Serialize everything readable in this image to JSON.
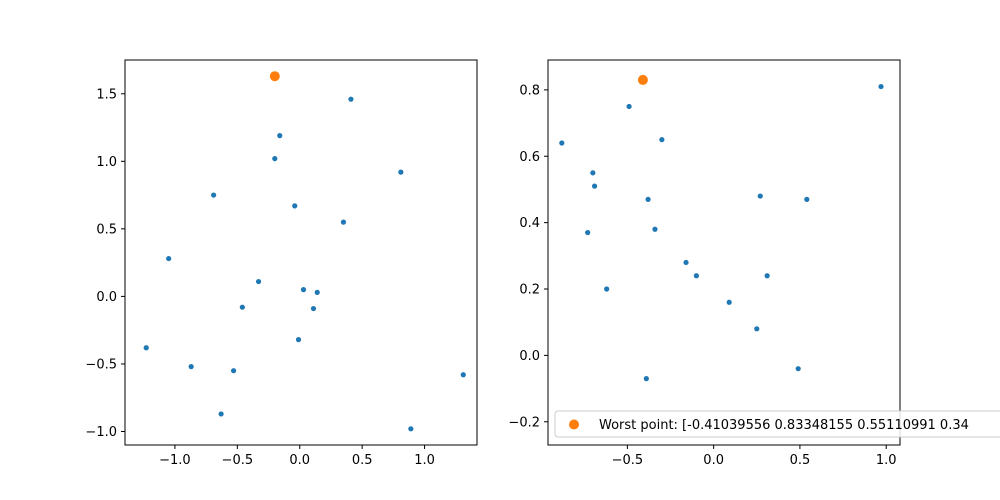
{
  "chart_data": [
    {
      "type": "scatter",
      "xlim": [
        -1.4,
        1.42
      ],
      "ylim": [
        -1.1,
        1.75
      ],
      "xticks": [
        -1.0,
        -0.5,
        0.0,
        0.5,
        1.0
      ],
      "xtick_labels": [
        "−1.0",
        "−0.5",
        "0.0",
        "0.5",
        "1.0"
      ],
      "yticks": [
        -1.0,
        -0.5,
        0.0,
        0.5,
        1.0,
        1.5
      ],
      "ytick_labels": [
        "−1.0",
        "−0.5",
        "0.0",
        "0.5",
        "1.0",
        "1.5"
      ],
      "grid": false,
      "series": [
        {
          "color": "#1f77b4",
          "marker": "small-dot",
          "x": [
            0.41,
            -0.16,
            -0.2,
            -0.69,
            -0.04,
            0.81,
            0.35,
            -1.05,
            -0.33,
            0.03,
            0.14,
            -0.46,
            0.11,
            -0.01,
            -1.23,
            -0.87,
            -0.53,
            1.31,
            -0.63,
            0.89
          ],
          "y": [
            1.46,
            1.19,
            1.02,
            0.75,
            0.67,
            0.92,
            0.55,
            0.28,
            0.11,
            0.05,
            0.03,
            -0.08,
            -0.09,
            -0.32,
            -0.38,
            -0.52,
            -0.55,
            -0.58,
            -0.87,
            -0.98
          ]
        },
        {
          "color": "#ff7f0e",
          "marker": "large-dot",
          "x": [
            -0.2
          ],
          "y": [
            1.63
          ]
        }
      ]
    },
    {
      "type": "scatter",
      "xlim": [
        -0.96,
        1.08
      ],
      "ylim": [
        -0.27,
        0.89
      ],
      "xticks": [
        -0.5,
        0.0,
        0.5,
        1.0
      ],
      "xtick_labels": [
        "−0.5",
        "0.0",
        "0.5",
        "1.0"
      ],
      "yticks": [
        -0.2,
        0.0,
        0.2,
        0.4,
        0.6,
        0.8
      ],
      "ytick_labels": [
        "−0.2",
        "0.0",
        "0.2",
        "0.4",
        "0.6",
        "0.8"
      ],
      "grid": false,
      "legend": {
        "placement": "lower-right",
        "label": "Worst point: [-0.41039556  0.83348155  0.55110991  0.34"
      },
      "series": [
        {
          "color": "#1f77b4",
          "marker": "small-dot",
          "x": [
            0.97,
            -0.49,
            -0.3,
            -0.88,
            -0.7,
            -0.69,
            0.27,
            0.54,
            -0.38,
            -0.73,
            -0.34,
            -0.16,
            -0.1,
            0.31,
            -0.62,
            0.09,
            0.25,
            0.49,
            -0.39
          ],
          "y": [
            0.81,
            0.75,
            0.65,
            0.64,
            0.55,
            0.51,
            0.48,
            0.47,
            0.47,
            0.37,
            0.38,
            0.28,
            0.24,
            0.24,
            0.2,
            0.16,
            0.08,
            -0.04,
            -0.07
          ]
        },
        {
          "color": "#ff7f0e",
          "marker": "large-dot",
          "x": [
            -0.41
          ],
          "y": [
            0.83
          ]
        }
      ]
    }
  ]
}
